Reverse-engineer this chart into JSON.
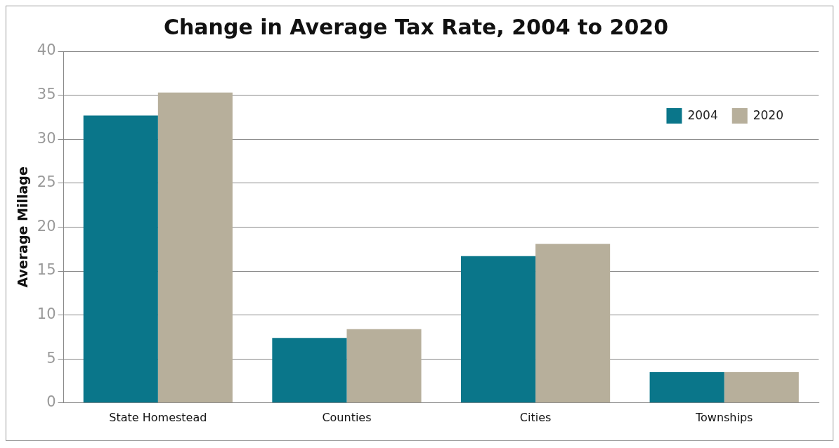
{
  "chart_data": {
    "type": "bar",
    "title": "Change in Average Tax Rate, 2004 to 2020",
    "ylabel": "Average Millage",
    "categories": [
      "State Homestead",
      "Counties",
      "Cities",
      "Townships"
    ],
    "series": [
      {
        "name": "2004",
        "color": "#0a768a",
        "values": [
          32.7,
          7.4,
          16.7,
          3.5
        ]
      },
      {
        "name": "2020",
        "color": "#b7af9b",
        "values": [
          35.3,
          8.4,
          18.1,
          3.5
        ]
      }
    ],
    "ylim": [
      0,
      40
    ],
    "yticks": [
      0,
      5,
      10,
      15,
      20,
      25,
      30,
      35,
      40
    ],
    "grid": "y",
    "legend": "top right"
  }
}
